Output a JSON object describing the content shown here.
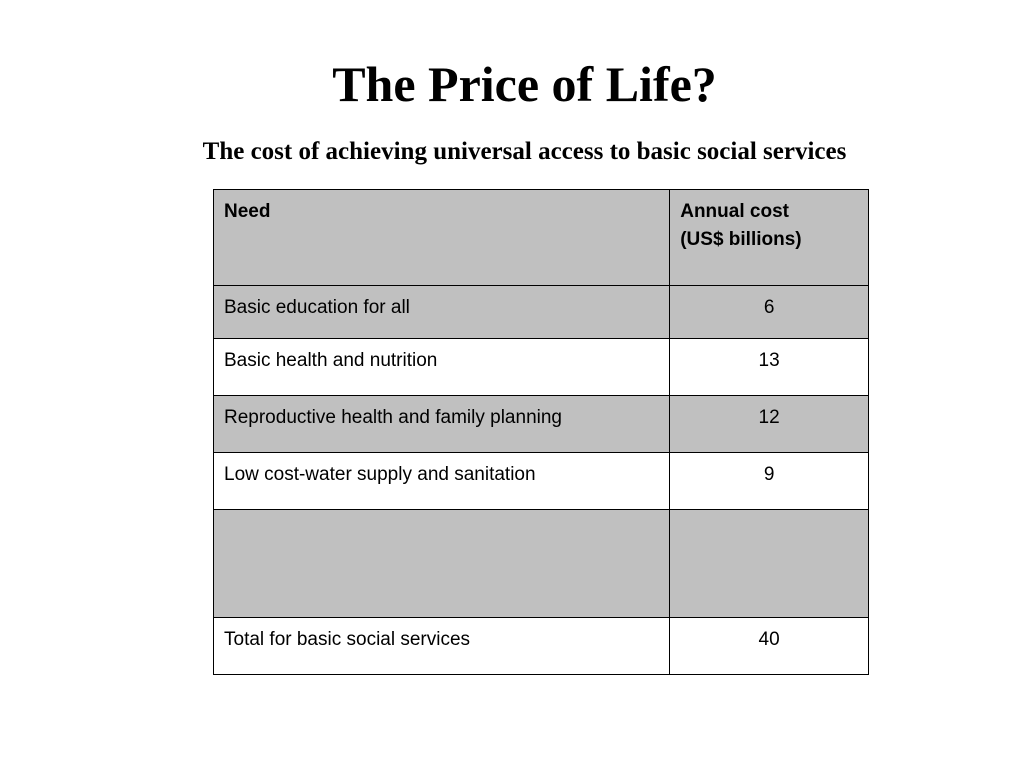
{
  "slide": {
    "title": "The Price of Life?",
    "subtitle": "The cost of achieving universal access to basic social services"
  },
  "table": {
    "headers": {
      "need": "Need",
      "cost_line1": "Annual cost",
      "cost_line2": "(US$ billions)"
    },
    "rows": [
      {
        "need": "Basic education for all",
        "cost": "6"
      },
      {
        "need": "Basic health and nutrition",
        "cost": "13"
      },
      {
        "need": "Reproductive health and family planning",
        "cost": "12"
      },
      {
        "need": "Low cost-water supply and sanitation",
        "cost": "9"
      },
      {
        "need": "",
        "cost": ""
      },
      {
        "need": "Total for basic social services",
        "cost": "40"
      }
    ]
  },
  "colors": {
    "shaded_row": "#c0c0c0",
    "plain_row": "#ffffff",
    "text": "#000000",
    "border": "#000000"
  }
}
